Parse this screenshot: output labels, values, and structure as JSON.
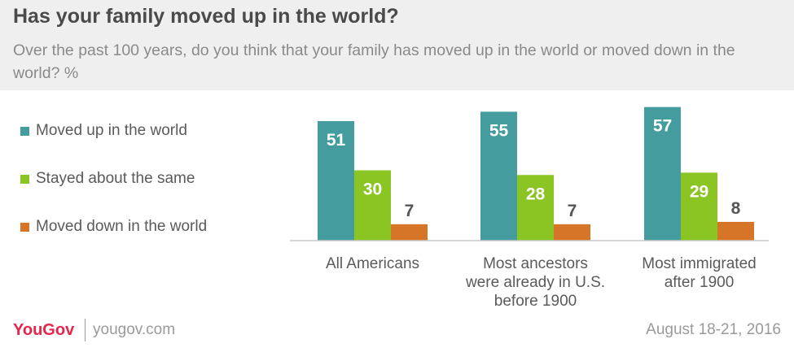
{
  "header": {
    "title": "Has your family moved up in the world?",
    "subtitle": "Over the past 100 years, do you think that your family has moved up in the world or moved down in the world? %"
  },
  "colors": {
    "moved_up": "#459c9f",
    "stayed": "#8ac523",
    "moved_down": "#d67527",
    "value_light": "#ffffff",
    "value_dark": "#555555",
    "axis_label": "#5a5a5a"
  },
  "chart_data": {
    "type": "bar",
    "title": "Has your family moved up in the world?",
    "subtitle": "Over the past 100 years, do you think that your family has moved up in the world or moved down in the world? %",
    "categories": [
      [
        "All Americans"
      ],
      [
        "Most ancestors",
        "were already in U.S.",
        "before 1900"
      ],
      [
        "Most immigrated",
        "after 1900"
      ]
    ],
    "series": [
      {
        "name": "Moved up in the world",
        "color": "#459c9f",
        "values": [
          51,
          55,
          57
        ]
      },
      {
        "name": "Stayed about the same",
        "color": "#8ac523",
        "values": [
          30,
          28,
          29
        ]
      },
      {
        "name": "Moved down in the world",
        "color": "#d67527",
        "values": [
          7,
          7,
          8
        ]
      }
    ],
    "ylim": [
      0,
      60
    ],
    "grid": false,
    "legend_position": "left"
  },
  "footer": {
    "logo": "YouGov",
    "site": "yougov.com",
    "date": "August 18-21, 2016"
  }
}
